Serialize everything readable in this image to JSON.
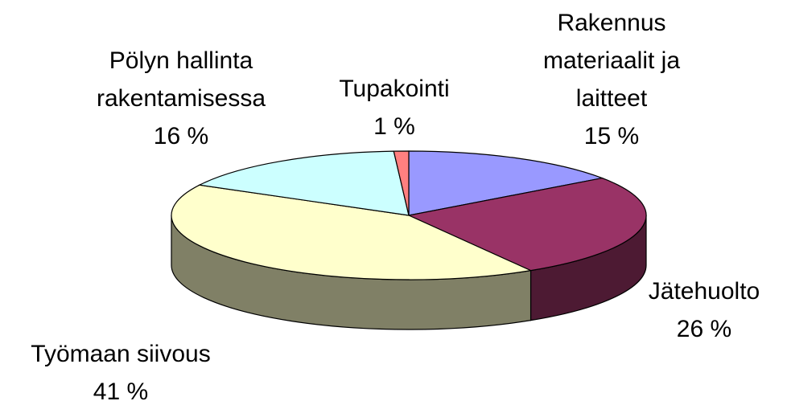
{
  "chart_data": {
    "type": "pie3d",
    "categories": [
      "Rakennus materiaalit ja laitteet",
      "Jätehuolto",
      "Työmaan siivous",
      "Pölyn hallinta rakentamisessa",
      "Tupakointi"
    ],
    "values": [
      15,
      26,
      41,
      16,
      1
    ],
    "value_labels": [
      "15 %",
      "26 %",
      "41 %",
      "16 %",
      "1 %"
    ],
    "colors": [
      "#9999ff",
      "#993366",
      "#ffffcc",
      "#ccffff",
      "#ff8080"
    ]
  }
}
